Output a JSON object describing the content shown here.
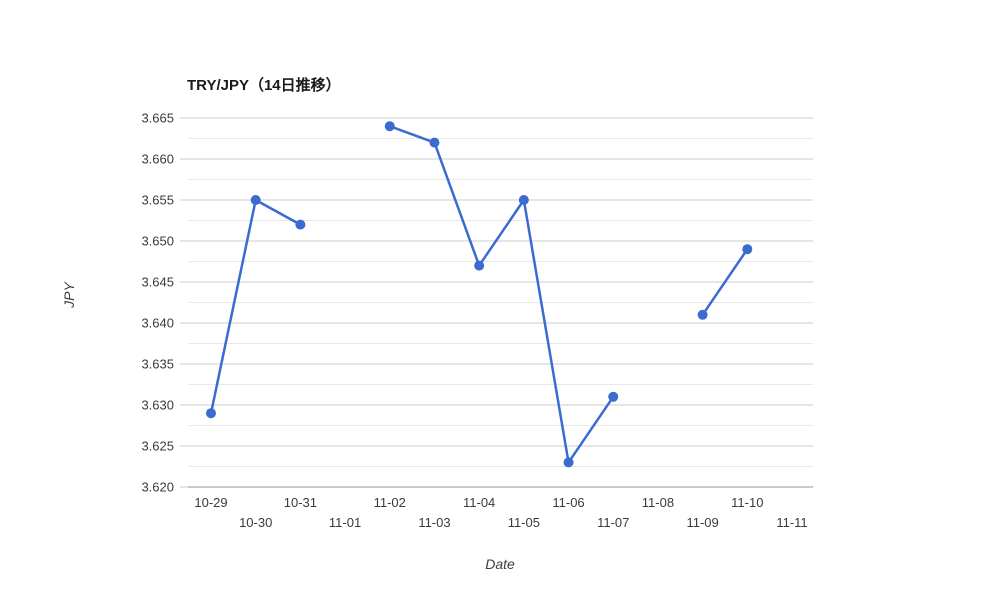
{
  "chart_data": {
    "type": "line",
    "title": "TRY/JPY（14日推移）",
    "xlabel": "Date",
    "ylabel": "JPY",
    "categories": [
      "10-29",
      "10-30",
      "10-31",
      "11-01",
      "11-02",
      "11-03",
      "11-04",
      "11-05",
      "11-06",
      "11-07",
      "11-08",
      "11-09",
      "11-10",
      "11-11"
    ],
    "series": [
      {
        "name": "TRY/JPY",
        "values": [
          3.629,
          3.655,
          3.652,
          null,
          3.664,
          3.662,
          3.647,
          3.655,
          3.623,
          3.631,
          null,
          3.641,
          3.649,
          null
        ]
      }
    ],
    "ylim": [
      3.62,
      3.665
    ],
    "y_major_step": 0.005,
    "y_minor_step": 0.0025,
    "y_tick_labels": [
      "3.620",
      "3.625",
      "3.630",
      "3.635",
      "3.640",
      "3.645",
      "3.650",
      "3.655",
      "3.660",
      "3.665"
    ],
    "grid": "horizontal-only, major and minor lines, no vertical gridlines",
    "legend": "none",
    "x_labels_staggered": "even indices on upper row, odd indices on lower row",
    "marker": "filled circle",
    "colors": {
      "series": "#3b6bd1",
      "major_grid": "#cdcdcd",
      "minor_grid": "#e8e8e8",
      "axis_line": "#ababab",
      "tick_text": "#3a3a3a",
      "title_text": "#1a1a1a",
      "background": "#ffffff"
    }
  }
}
